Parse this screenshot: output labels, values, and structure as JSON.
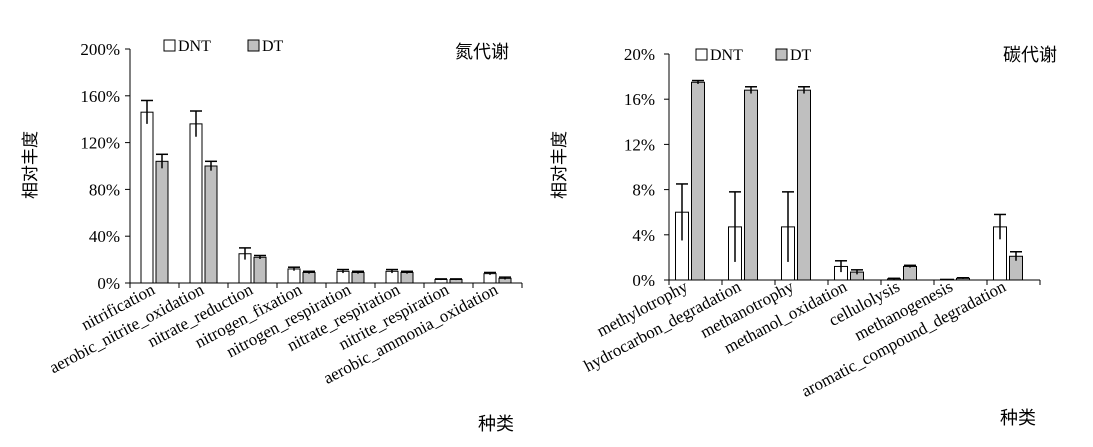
{
  "chart_data": [
    {
      "type": "bar",
      "title": "氮代谢",
      "xlabel": "种类",
      "ylabel": "相对丰度",
      "ylim": [
        0,
        200
      ],
      "yticks": [
        0,
        40,
        80,
        120,
        160,
        200
      ],
      "ytick_labels": [
        "0%",
        "40%",
        "80%",
        "120%",
        "160%",
        "200%"
      ],
      "legend_position": "top-left",
      "categories": [
        "nitrification",
        "aerobic_nitrite_oxidation",
        "nitrate_reduction",
        "nitrogen_fixation",
        "nitrogen_respiration",
        "nitrate_respiration",
        "nitrite_respiration",
        "aerobic_ammonia_oxidation"
      ],
      "series": [
        {
          "name": "DNT",
          "color": "#ffffff",
          "values": [
            146,
            136,
            25,
            12,
            10,
            10,
            3,
            8
          ],
          "errors": [
            10,
            11,
            5,
            1.5,
            1.5,
            1.5,
            0.5,
            1
          ]
        },
        {
          "name": "DT",
          "color": "#bfbfbf",
          "values": [
            104,
            100,
            22,
            9,
            9,
            9,
            3,
            4
          ],
          "errors": [
            6,
            4,
            1.5,
            1,
            1,
            1,
            0.5,
            1
          ]
        }
      ]
    },
    {
      "type": "bar",
      "title": "碳代谢",
      "xlabel": "种类",
      "ylabel": "相对丰度",
      "ylim": [
        0,
        20
      ],
      "yticks": [
        0,
        4,
        8,
        12,
        16,
        20
      ],
      "ytick_labels": [
        "0%",
        "4%",
        "8%",
        "12%",
        "16%",
        "20%"
      ],
      "legend_position": "top-left",
      "categories": [
        "methylotrophy",
        "hydrocarbon_degradation",
        "methanotrophy",
        "methanol_oxidation",
        "cellulolysis",
        "methanogenesis",
        "aromatic_compound_degradation"
      ],
      "series": [
        {
          "name": "DNT",
          "color": "#ffffff",
          "values": [
            6.0,
            4.7,
            4.7,
            1.2,
            0.1,
            0,
            4.7
          ],
          "errors": [
            2.5,
            3.1,
            3.1,
            0.5,
            0.05,
            0,
            1.1
          ]
        },
        {
          "name": "DT",
          "color": "#bfbfbf",
          "values": [
            17.5,
            16.8,
            16.8,
            0.7,
            1.2,
            0.15,
            2.1
          ],
          "errors": [
            0.15,
            0.3,
            0.3,
            0.2,
            0.1,
            0.05,
            0.4
          ]
        }
      ]
    }
  ]
}
